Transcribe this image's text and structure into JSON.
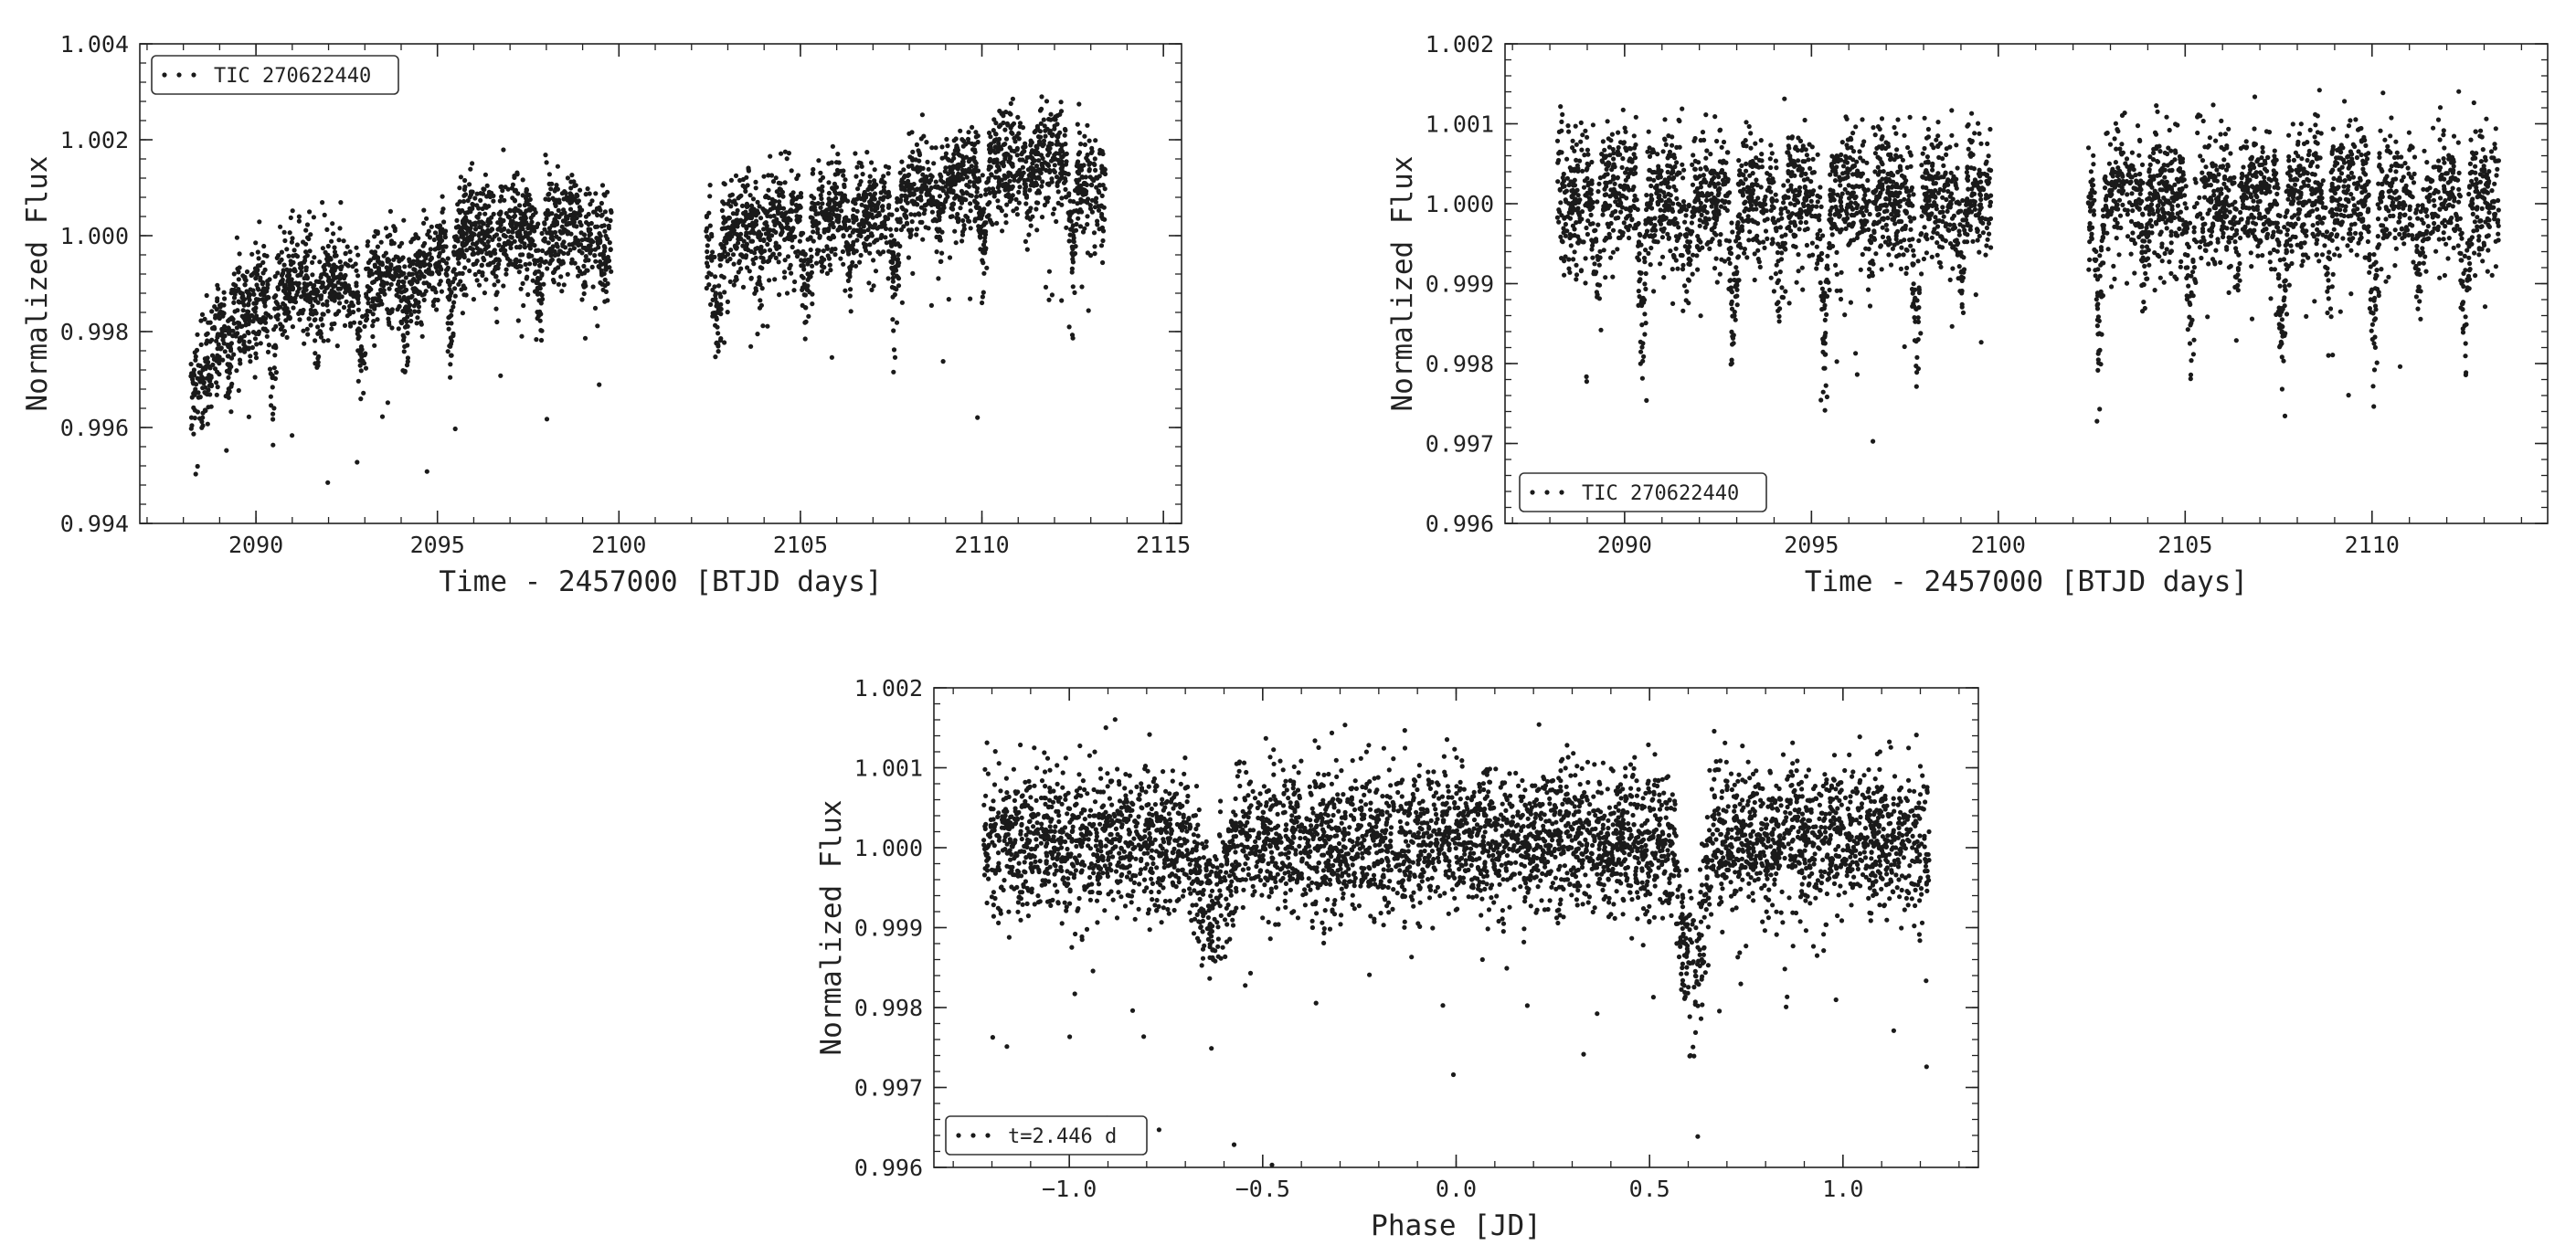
{
  "chart_data": [
    {
      "type": "scatter",
      "title": "",
      "xlabel": "Time - 2457000 [BTJD days]",
      "ylabel": "Normalized Flux",
      "xlim": [
        2086.8,
        2115.5
      ],
      "ylim": [
        0.994,
        1.004
      ],
      "xticks": [
        2090,
        2095,
        2100,
        2105,
        2110,
        2115
      ],
      "yticks": [
        0.994,
        0.996,
        0.998,
        1.0,
        1.002,
        1.004
      ],
      "tick_decimals": 3,
      "legend": {
        "label": "TIC 270622440",
        "placement": "top-left"
      },
      "series": [
        {
          "name": "TIC 270622440",
          "segments": [
            [
              2088.2,
              2099.8
            ],
            [
              2102.4,
              2113.4
            ]
          ],
          "trend": [
            [
              2088.2,
              0.9965
            ],
            [
              2089.2,
              0.9982
            ],
            [
              2090.4,
              0.9988
            ],
            [
              2091.5,
              0.9991
            ],
            [
              2093.0,
              0.999
            ],
            [
              2094.5,
              0.9992
            ],
            [
              2095.6,
              1.0
            ],
            [
              2097.0,
              1.0001
            ],
            [
              2099.0,
              1.0002
            ],
            [
              2099.8,
              0.9995
            ],
            [
              2102.4,
              0.9998
            ],
            [
              2104.0,
              1.0003
            ],
            [
              2107.0,
              1.0004
            ],
            [
              2108.8,
              1.001
            ],
            [
              2110.5,
              1.0015
            ],
            [
              2112.0,
              1.0016
            ],
            [
              2113.4,
              1.0008
            ]
          ],
          "scatter_sigma": 0.00055,
          "eclipses": [
            {
              "t0": 2090.47,
              "period": 2.446,
              "depth": 0.0017,
              "width": 0.16
            },
            {
              "t0": 2089.25,
              "period": 2.446,
              "depth": 0.0009,
              "width": 0.13
            }
          ]
        }
      ]
    },
    {
      "type": "scatter",
      "title": "",
      "xlabel": "Time - 2457000 [BTJD days]",
      "ylabel": "Normalized Flux",
      "xlim": [
        2086.8,
        2114.7
      ],
      "ylim": [
        0.996,
        1.002
      ],
      "xticks": [
        2090,
        2095,
        2100,
        2105,
        2110
      ],
      "yticks": [
        0.996,
        0.997,
        0.998,
        0.999,
        1.0,
        1.001,
        1.002
      ],
      "tick_decimals": 3,
      "legend": {
        "label": "TIC 270622440",
        "placement": "bottom-left"
      },
      "series": [
        {
          "name": "TIC 270622440",
          "segments": [
            [
              2088.2,
              2099.8
            ],
            [
              2102.4,
              2113.4
            ]
          ],
          "trend": [
            [
              2088.2,
              1.0001
            ],
            [
              2113.4,
              1.0001
            ]
          ],
          "scatter_sigma": 0.00042,
          "eclipses": [
            {
              "t0": 2090.47,
              "period": 2.446,
              "depth": 0.0017,
              "width": 0.16
            },
            {
              "t0": 2089.25,
              "period": 2.446,
              "depth": 0.0009,
              "width": 0.13
            }
          ]
        }
      ]
    },
    {
      "type": "scatter",
      "title": "",
      "xlabel": "Phase [JD]",
      "ylabel": "Normalized Flux",
      "xlim": [
        -1.35,
        1.35
      ],
      "ylim": [
        0.996,
        1.002
      ],
      "xticks": [
        -1.0,
        -0.5,
        0.0,
        0.5,
        1.0
      ],
      "yticks": [
        0.996,
        0.997,
        0.998,
        0.999,
        1.0,
        1.001,
        1.002
      ],
      "tick_decimals": 3,
      "x_tick_decimals": 1,
      "legend": {
        "label": "t=2.446 d",
        "placement": "bottom-left"
      },
      "series": [
        {
          "name": "t=2.446 d",
          "segments": [
            [
              -1.223,
              1.223
            ]
          ],
          "trend": [
            [
              -1.223,
              1.0001
            ],
            [
              1.223,
              1.0001
            ]
          ],
          "scatter_sigma": 0.00045,
          "eclipses": [
            {
              "center": -0.63,
              "depth": 0.0009,
              "width": 0.065
            },
            {
              "center": 0.61,
              "depth": 0.0017,
              "width": 0.055
            }
          ]
        }
      ]
    }
  ]
}
